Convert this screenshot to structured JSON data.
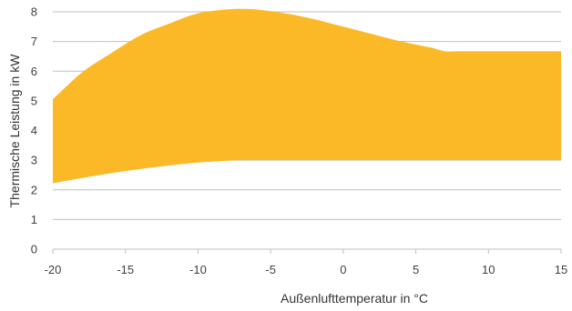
{
  "chart_data": {
    "type": "area",
    "xlabel": "Außenlufttemperatur in °C",
    "ylabel": "Thermische Leistung in kW",
    "xlim": [
      -20,
      15
    ],
    "ylim": [
      0,
      8
    ],
    "x_ticks": [
      "-20",
      "-15",
      "-10",
      "-5",
      "0",
      "5",
      "10",
      "15"
    ],
    "y_ticks": [
      "0",
      "1",
      "2",
      "3",
      "4",
      "5",
      "6",
      "7",
      "8"
    ],
    "grid": "horizontal",
    "fill_color": "#FBB928",
    "grid_color": "#BFBFBF",
    "series": [
      {
        "x": [
          -20,
          -18,
          -16,
          -14,
          -12,
          -10,
          -8,
          -7,
          -6,
          -4,
          -2,
          0,
          2,
          4,
          6,
          7,
          8,
          10,
          12,
          15
        ],
        "upper": [
          5.05,
          5.95,
          6.6,
          7.2,
          7.6,
          7.95,
          8.08,
          8.1,
          8.08,
          7.95,
          7.75,
          7.5,
          7.25,
          7.0,
          6.8,
          6.67,
          6.67,
          6.67,
          6.67,
          6.67
        ],
        "lower": [
          2.22,
          2.4,
          2.56,
          2.7,
          2.82,
          2.92,
          2.98,
          3.0,
          3.0,
          3.0,
          3.0,
          3.0,
          3.0,
          3.0,
          3.0,
          3.0,
          3.0,
          3.0,
          3.0,
          3.0
        ]
      }
    ]
  }
}
